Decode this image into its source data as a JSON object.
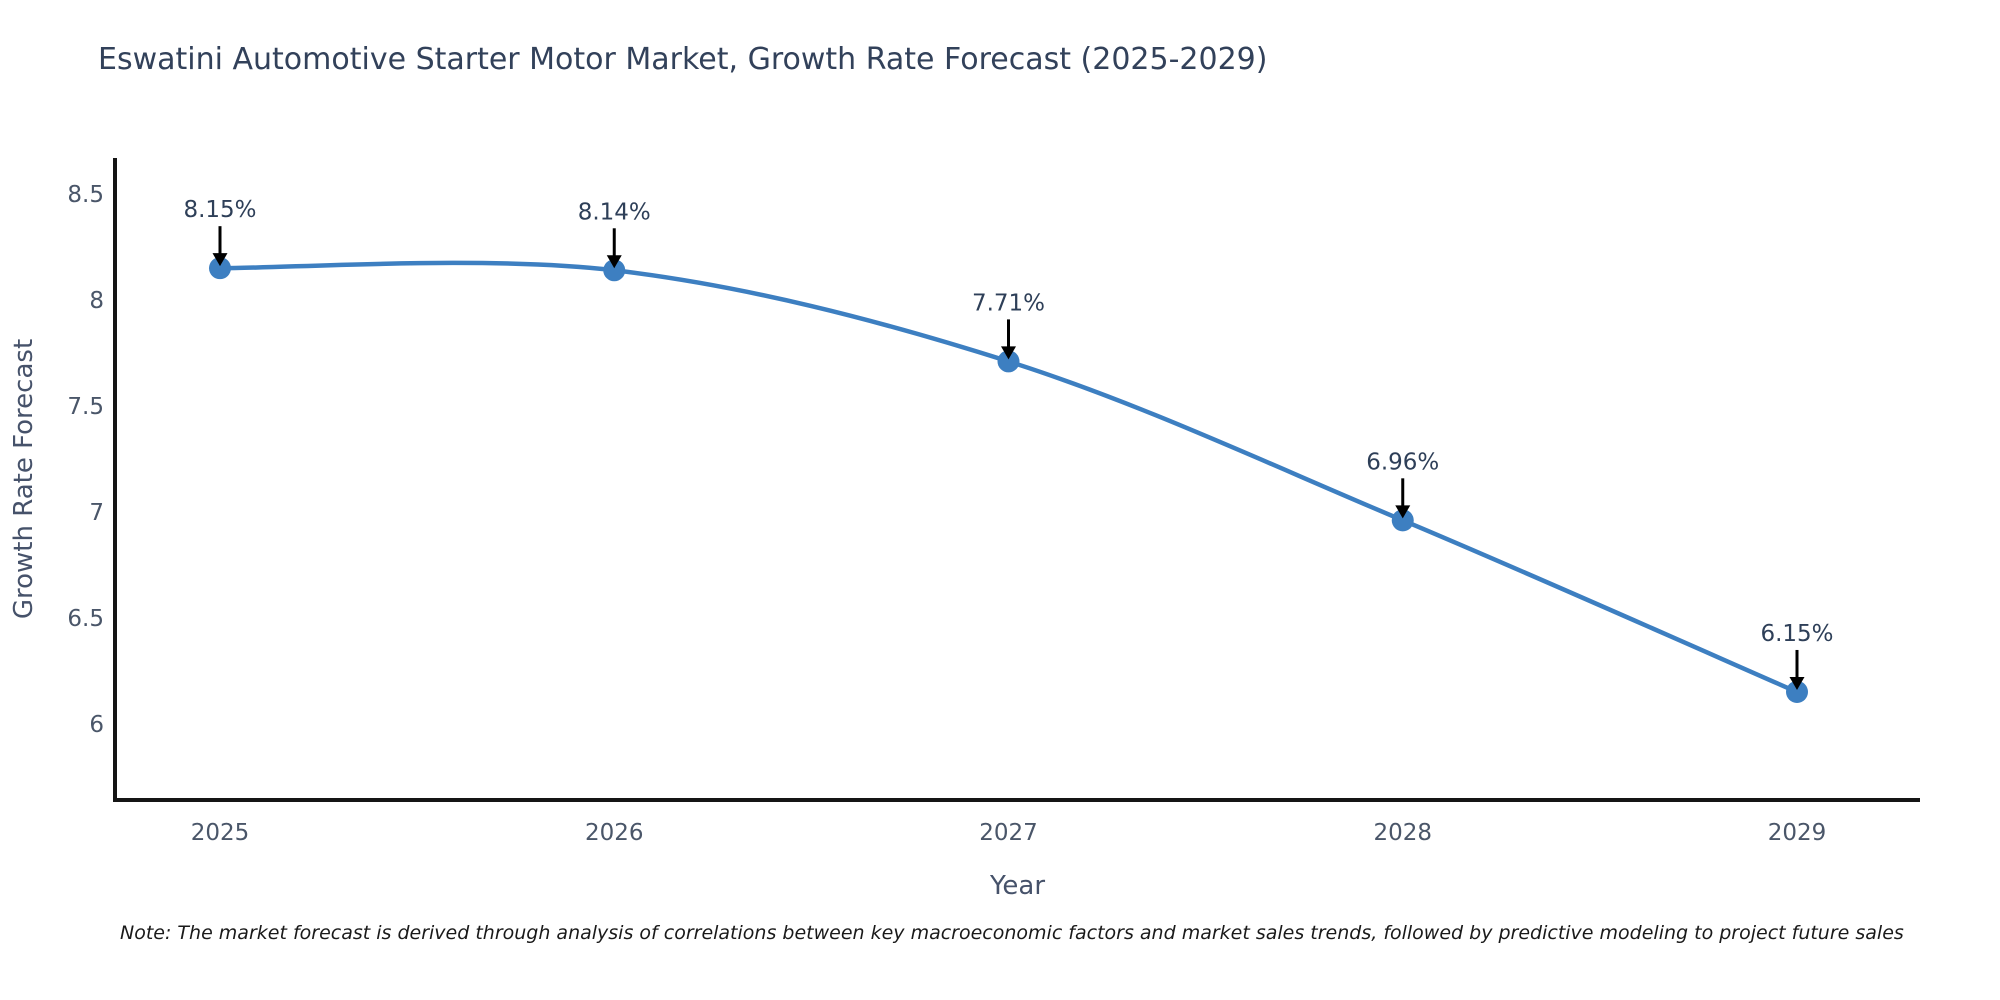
{
  "note": "Note: The market forecast is derived through analysis of correlations between key macroeconomic factors and market sales trends, followed by predictive modeling to project future sales",
  "chart_data": {
    "type": "line",
    "title": "Eswatini Automotive Starter Motor Market, Growth Rate Forecast (2025-2029)",
    "xlabel": "Year",
    "ylabel": "Growth Rate Forecast",
    "x": [
      2025,
      2026,
      2027,
      2028,
      2029
    ],
    "values": [
      8.15,
      8.14,
      7.71,
      6.96,
      6.15
    ],
    "point_labels": [
      "8.15%",
      "8.14%",
      "7.71%",
      "6.96%",
      "6.15%"
    ],
    "xticklabels": [
      "2025",
      "2026",
      "2027",
      "2028",
      "2029"
    ],
    "yticks": [
      6,
      6.5,
      7,
      7.5,
      8,
      8.5
    ],
    "ytick_labels": [
      "6",
      "6.5",
      "7",
      "7.5",
      "8",
      "8.5"
    ],
    "ylim": [
      5.64,
      8.67
    ],
    "xlim": [
      2024.73,
      2029.31
    ],
    "grid": false,
    "legend_position": "none",
    "line_shape": "spline",
    "line_color": "#3d7fc1",
    "marker_color": "#3d7fc1",
    "axis_color": "#151515",
    "annotation_arrow_color": "#000000"
  }
}
